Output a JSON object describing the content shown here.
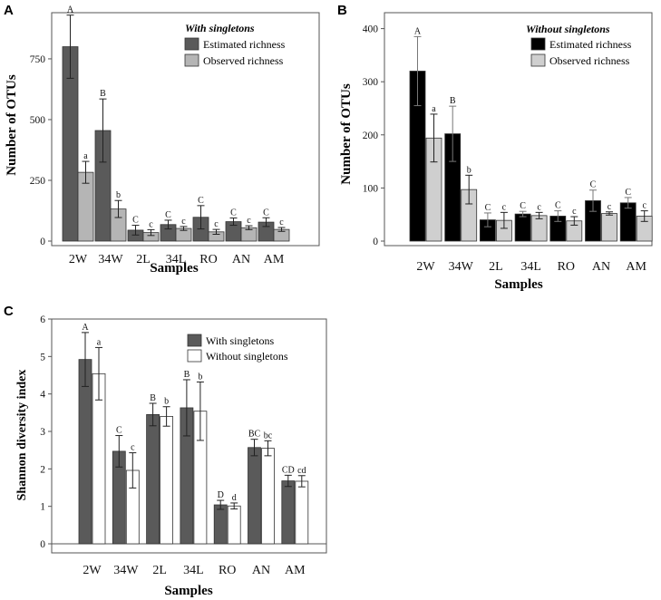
{
  "chart_data": [
    {
      "panel_label": "A",
      "type": "bar",
      "title": "With singletons",
      "xlabel": "Samples",
      "ylabel": "Number of OTUs",
      "ylim": [
        0,
        940
      ],
      "yticks": [
        0,
        250,
        500,
        750
      ],
      "grid": false,
      "legend_position": "top-right",
      "categories": [
        "2W",
        "34W",
        "2L",
        "34L",
        "RO",
        "AN",
        "AM"
      ],
      "series": [
        {
          "name": "Estimated richness",
          "color": "#5a5a5a",
          "values": [
            800,
            455,
            45,
            68,
            98,
            80,
            78
          ],
          "errors": [
            130,
            130,
            20,
            18,
            48,
            15,
            18
          ],
          "letters": [
            "A",
            "B",
            "C",
            "C",
            "C",
            "C",
            "C"
          ]
        },
        {
          "name": "Observed richness",
          "color": "#b5b5b5",
          "values": [
            283,
            132,
            35,
            52,
            38,
            55,
            48
          ],
          "errors": [
            45,
            35,
            12,
            8,
            10,
            8,
            8
          ],
          "letters": [
            "a",
            "b",
            "c",
            "c",
            "c",
            "c",
            "c"
          ]
        }
      ]
    },
    {
      "panel_label": "B",
      "type": "bar",
      "title": "Without singletons",
      "xlabel": "Samples",
      "ylabel": "Number of OTUs",
      "ylim": [
        0,
        430
      ],
      "yticks": [
        0,
        100,
        200,
        300,
        400
      ],
      "grid": false,
      "legend_position": "top-right",
      "categories": [
        "2W",
        "34W",
        "2L",
        "34L",
        "RO",
        "AN",
        "AM"
      ],
      "series": [
        {
          "name": "Estimated richness",
          "color": "#000000",
          "values": [
            320,
            202,
            40,
            51,
            47,
            76,
            72
          ],
          "errors": [
            65,
            52,
            13,
            5,
            10,
            20,
            10
          ],
          "letters": [
            "A",
            "B",
            "C",
            "C",
            "C",
            "C",
            "C"
          ]
        },
        {
          "name": "Observed richness",
          "color": "#cfcfcf",
          "values": [
            194,
            97,
            39,
            48,
            38,
            52,
            47
          ],
          "errors": [
            45,
            27,
            15,
            6,
            8,
            3,
            10
          ],
          "letters": [
            "a",
            "b",
            "c",
            "c",
            "c",
            "c",
            "c"
          ]
        }
      ]
    },
    {
      "panel_label": "C",
      "type": "bar",
      "title": "",
      "xlabel": "Samples",
      "ylabel": "Shannon diversity index",
      "ylim": [
        0,
        6
      ],
      "yticks": [
        0,
        1,
        2,
        3,
        4,
        5,
        6
      ],
      "grid": false,
      "legend_position": "top-right",
      "categories": [
        "2W",
        "34W",
        "2L",
        "34L",
        "RO",
        "AN",
        "AM"
      ],
      "series": [
        {
          "name": "With singletons",
          "color": "#5a5a5a",
          "values": [
            4.92,
            2.47,
            3.45,
            3.63,
            1.04,
            2.57,
            1.68
          ],
          "errors": [
            0.72,
            0.42,
            0.3,
            0.75,
            0.12,
            0.22,
            0.15
          ],
          "letters": [
            "A",
            "C",
            "B",
            "B",
            "D",
            "BC",
            "CD"
          ]
        },
        {
          "name": "Without singletons",
          "color": "#ffffff",
          "values": [
            4.54,
            1.96,
            3.4,
            3.54,
            1.01,
            2.55,
            1.67
          ],
          "errors": [
            0.7,
            0.47,
            0.26,
            0.78,
            0.08,
            0.2,
            0.15
          ],
          "letters": [
            "a",
            "c",
            "b",
            "b",
            "d",
            "bc",
            "cd"
          ]
        }
      ]
    }
  ]
}
